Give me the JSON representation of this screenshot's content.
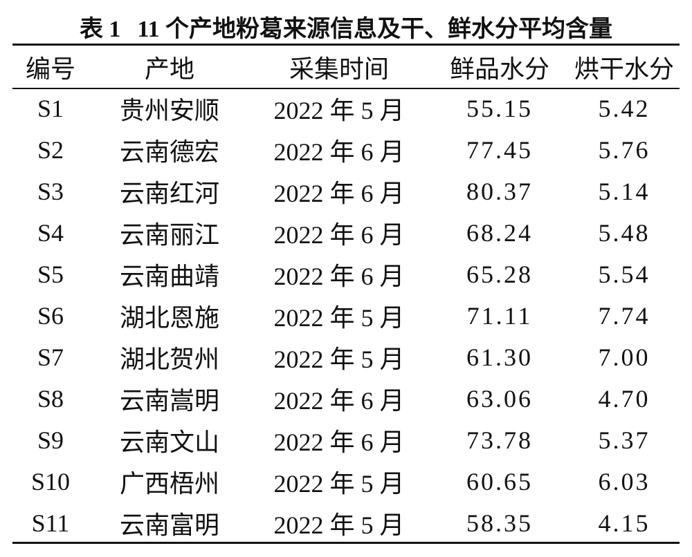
{
  "table": {
    "label": "表 1",
    "title": "11 个产地粉葛来源信息及干、鲜水分平均含量",
    "header": [
      "编号",
      "产地",
      "采集时间",
      "鲜品水分",
      "烘干水分"
    ],
    "rows": [
      [
        "S1",
        "贵州安顺",
        "2022 年 5 月",
        "55.15",
        "5.42"
      ],
      [
        "S2",
        "云南德宏",
        "2022 年 6 月",
        "77.45",
        "5.76"
      ],
      [
        "S3",
        "云南红河",
        "2022 年 6 月",
        "80.37",
        "5.14"
      ],
      [
        "S4",
        "云南丽江",
        "2022 年 6 月",
        "68.24",
        "5.48"
      ],
      [
        "S5",
        "云南曲靖",
        "2022 年 6 月",
        "65.28",
        "5.54"
      ],
      [
        "S6",
        "湖北恩施",
        "2022 年 5 月",
        "71.11",
        "7.74"
      ],
      [
        "S7",
        "湖北贺州",
        "2022 年 5 月",
        "61.30",
        "7.00"
      ],
      [
        "S8",
        "云南嵩明",
        "2022 年 6 月",
        "63.06",
        "4.70"
      ],
      [
        "S9",
        "云南文山",
        "2022 年 6 月",
        "73.78",
        "5.37"
      ],
      [
        "S10",
        "广西梧州",
        "2022 年 5 月",
        "60.65",
        "6.03"
      ],
      [
        "S11",
        "云南富明",
        "2022 年 5 月",
        "58.35",
        "4.15"
      ]
    ]
  }
}
